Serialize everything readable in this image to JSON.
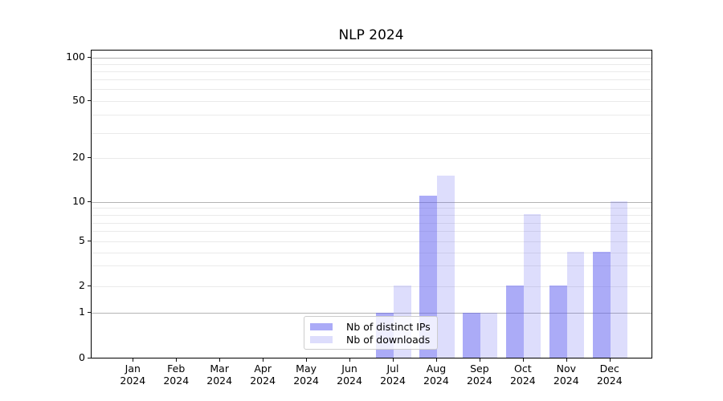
{
  "title": "NLP 2024",
  "colors": {
    "ips_bar": "rgba(87,87,240,0.5)",
    "downloads_bar": "rgba(87,87,240,0.2)",
    "grid_major": "#b4b4b4",
    "grid_minor": "#eaeaea",
    "spine": "#000000",
    "legend_border": "#cccccc"
  },
  "legend": {
    "items": [
      {
        "label": "Nb of distinct IPs",
        "swatch": "medium-periwinkle"
      },
      {
        "label": "Nb of downloads",
        "swatch": "light-periwinkle"
      }
    ]
  },
  "chart_data": {
    "type": "bar",
    "title": "NLP 2024",
    "categories": [
      "Jan 2024",
      "Feb 2024",
      "Mar 2024",
      "Apr 2024",
      "May 2024",
      "Jun 2024",
      "Jul 2024",
      "Aug 2024",
      "Sep 2024",
      "Oct 2024",
      "Nov 2024",
      "Dec 2024"
    ],
    "series": [
      {
        "name": "Nb of distinct IPs",
        "color_key": "ips_bar",
        "values": [
          0,
          0,
          0,
          0,
          0,
          0,
          1,
          11,
          1,
          2,
          2,
          4
        ]
      },
      {
        "name": "Nb of downloads",
        "color_key": "downloads_bar",
        "values": [
          0,
          0,
          0,
          0,
          0,
          0,
          2,
          15,
          1,
          8,
          4,
          10
        ]
      }
    ],
    "xlabel": "",
    "ylabel": "",
    "yticks": [
      0,
      1,
      2,
      5,
      10,
      20,
      50,
      100
    ],
    "ylim": [
      0,
      112
    ],
    "yscale": "symlog-like",
    "grid": "horizontal, major at 1/10/100, minor at 2-9 and 20-90",
    "legend_position": "inside lower center-left"
  }
}
